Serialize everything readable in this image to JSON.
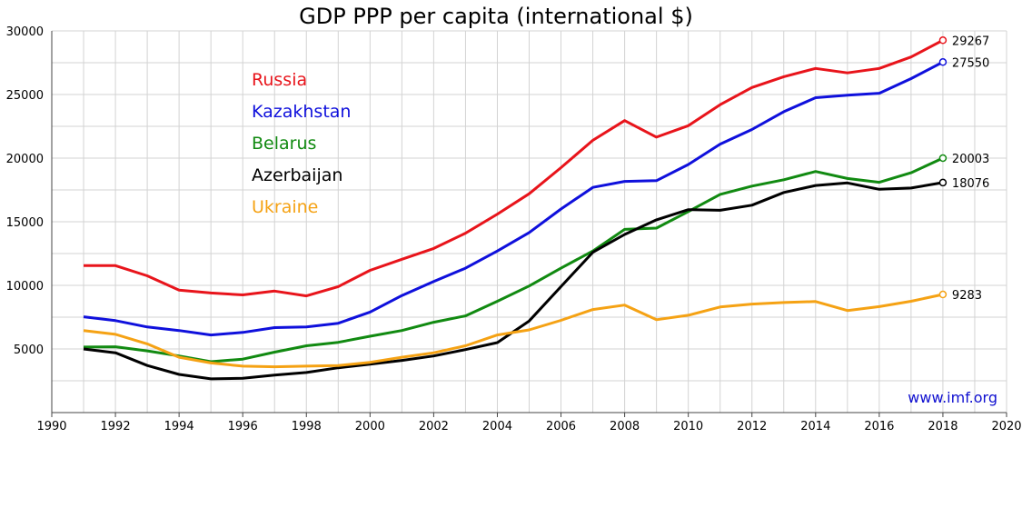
{
  "chart_data": {
    "type": "line",
    "title": "GDP PPP per capita (international $)",
    "xlabel": "",
    "ylabel": "",
    "xlim": [
      1990,
      2020
    ],
    "ylim": [
      0,
      30000
    ],
    "grid": true,
    "x_ticks": [
      1990,
      1992,
      1994,
      1996,
      1998,
      2000,
      2002,
      2004,
      2006,
      2008,
      2010,
      2012,
      2014,
      2016,
      2018,
      2020
    ],
    "y_ticks": [
      5000,
      10000,
      15000,
      20000,
      25000,
      30000
    ],
    "x": [
      1991,
      1992,
      1993,
      1994,
      1995,
      1996,
      1997,
      1998,
      1999,
      2000,
      2001,
      2002,
      2003,
      2004,
      2005,
      2006,
      2007,
      2008,
      2009,
      2010,
      2011,
      2012,
      2013,
      2014,
      2015,
      2016,
      2017,
      2018
    ],
    "legend_position": "top-left",
    "series": [
      {
        "name": "Russia",
        "color": "#e8141b",
        "values": [
          11550,
          11550,
          10750,
          9620,
          9400,
          9250,
          9550,
          9170,
          9900,
          11180,
          12050,
          12900,
          14100,
          15600,
          17200,
          19250,
          21400,
          22950,
          21650,
          22550,
          24200,
          25550,
          26400,
          27050,
          26700,
          27050,
          27950,
          29267
        ],
        "end_label": "29267"
      },
      {
        "name": "Kazakhstan",
        "color": "#0f10dc",
        "values": [
          7530,
          7230,
          6730,
          6450,
          6100,
          6300,
          6680,
          6730,
          7020,
          7900,
          9200,
          10300,
          11350,
          12700,
          14150,
          16000,
          17700,
          18170,
          18230,
          19500,
          21100,
          22250,
          23650,
          24750,
          24950,
          25100,
          26250,
          27550
        ],
        "end_label": "27550"
      },
      {
        "name": "Belarus",
        "color": "#118a11",
        "values": [
          5150,
          5170,
          4850,
          4450,
          4000,
          4200,
          4750,
          5250,
          5520,
          6000,
          6450,
          7100,
          7600,
          8750,
          9950,
          11350,
          12700,
          14400,
          14500,
          15800,
          17150,
          17800,
          18300,
          18950,
          18400,
          18100,
          18850,
          20003
        ],
        "end_label": "20003"
      },
      {
        "name": "Azerbaijan",
        "color": "#000000",
        "values": [
          5000,
          4700,
          3700,
          3000,
          2650,
          2700,
          2950,
          3150,
          3520,
          3800,
          4100,
          4450,
          4950,
          5500,
          7200,
          9900,
          12600,
          14000,
          15150,
          15950,
          15900,
          16300,
          17300,
          17850,
          18050,
          17550,
          17650,
          18076
        ],
        "end_label": "18076"
      },
      {
        "name": "Ukraine",
        "color": "#f5a214",
        "values": [
          6450,
          6150,
          5400,
          4350,
          3900,
          3650,
          3600,
          3650,
          3700,
          3950,
          4350,
          4700,
          5250,
          6100,
          6500,
          7250,
          8100,
          8450,
          7300,
          7650,
          8300,
          8530,
          8650,
          8730,
          8020,
          8330,
          8750,
          9283
        ],
        "end_label": "9283"
      }
    ],
    "source": "www.imf.org"
  }
}
